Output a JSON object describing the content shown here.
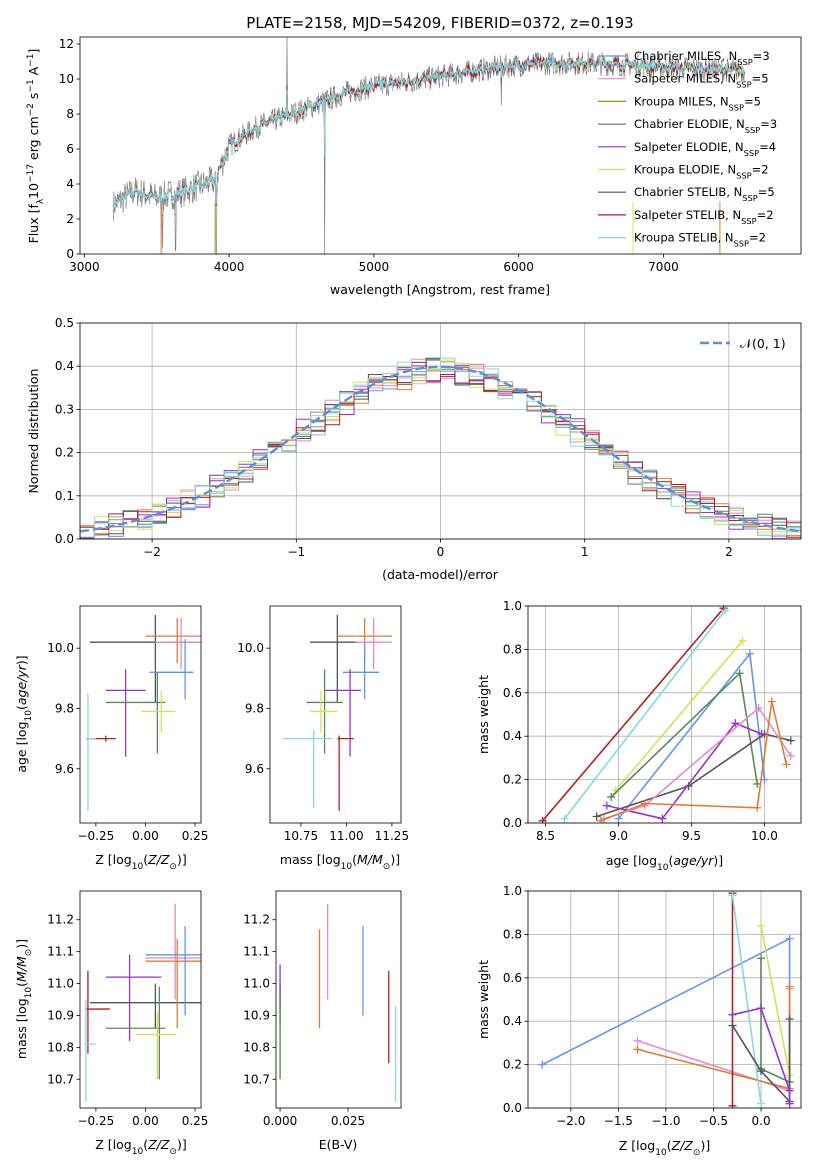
{
  "figure": {
    "title": "PLATE=2158, MJD=54209, FIBERID=0372, z=0.193"
  },
  "chart_data": [
    {
      "id": "spectrum",
      "type": "line",
      "xlabel": "wavelength [Angstrom, rest frame]",
      "ylabel": "Flux [f",
      "ylabel_parts": [
        "Flux [f",
        "λ",
        "10",
        "−17",
        " erg cm",
        "−2",
        " s",
        "−1",
        " A",
        "−1",
        "]"
      ],
      "xlim": [
        2970,
        7950
      ],
      "ylim": [
        0,
        12.4
      ],
      "xticks": [
        3000,
        4000,
        5000,
        6000,
        7000
      ],
      "yticks": [
        0,
        2,
        4,
        6,
        8,
        10,
        12
      ],
      "grid": false,
      "legend_position": "top-right",
      "data_start": 3200,
      "series": [
        {
          "name": "Chabrier MILES, N_SSP=3",
          "label_pre": "Chabrier MILES, N",
          "sub": "SSP",
          "label_post": "=3",
          "color": "#6495ed"
        },
        {
          "name": "Salpeter MILES, N_SSP=5",
          "label_pre": "Salpeter MILES, N",
          "sub": "SSP",
          "label_post": "=5",
          "color": "#e58bc7"
        },
        {
          "name": "Kroupa MILES, N_SSP=5",
          "label_pre": "Kroupa MILES, N",
          "sub": "SSP",
          "label_post": "=5",
          "color": "#b8860b"
        },
        {
          "name": "Chabrier ELODIE, N_SSP=3",
          "label_pre": "Chabrier ELODIE, N",
          "sub": "SSP",
          "label_post": "=3",
          "color": "#5a8a5a"
        },
        {
          "name": "Salpeter ELODIE, N_SSP=4",
          "label_pre": "Salpeter ELODIE, N",
          "sub": "SSP",
          "label_post": "=4",
          "color": "#9932cc"
        },
        {
          "name": "Kroupa ELODIE, N_SSP=2",
          "label_pre": "Kroupa ELODIE, N",
          "sub": "SSP",
          "label_post": "=2",
          "color": "#d4e157"
        },
        {
          "name": "Chabrier STELIB, N_SSP=5",
          "label_pre": "Chabrier STELIB, N",
          "sub": "SSP",
          "label_post": "=5",
          "color": "#555555"
        },
        {
          "name": "Salpeter STELIB, N_SSP=2",
          "label_pre": "Salpeter STELIB, N",
          "sub": "SSP",
          "label_post": "=2",
          "color": "#b22222"
        },
        {
          "name": "Kroupa STELIB, N_SSP=2",
          "label_pre": "Kroupa STELIB, N",
          "sub": "SSP",
          "label_post": "=2",
          "color": "#87d8e0"
        }
      ],
      "data_color": "#808080",
      "continuum_x": [
        3200,
        3350,
        3500,
        3700,
        3900,
        4000,
        4200,
        4500,
        4800,
        5000,
        5200,
        5500,
        5800,
        6000,
        6200,
        6500,
        6800,
        7000,
        7200,
        7500
      ],
      "continuum_y": [
        2.8,
        3.6,
        3.2,
        3.6,
        4.2,
        6.2,
        7.3,
        8.2,
        9.2,
        9.6,
        9.8,
        10.2,
        10.6,
        10.8,
        10.9,
        10.9,
        10.8,
        10.7,
        10.6,
        10.5
      ]
    },
    {
      "id": "residuals",
      "type": "histogram",
      "xlabel": "(data-model)/error",
      "ylabel": "Normed distribution",
      "xlim": [
        -2.5,
        2.5
      ],
      "ylim": [
        0,
        0.5
      ],
      "xticks": [
        -2,
        -1,
        0,
        1,
        2
      ],
      "yticks": [
        0.0,
        0.1,
        0.2,
        0.3,
        0.4,
        0.5
      ],
      "grid": true,
      "legend_position": "top-right",
      "reference": {
        "name": "𝒩(0, 1)",
        "color": "#5b8fd6"
      }
    },
    {
      "id": "age-vs-Z",
      "type": "errorbar",
      "xlabel": "Z [log",
      "ylabel": "age [log",
      "xlim": [
        -0.33,
        0.28
      ],
      "ylim": [
        9.42,
        10.14
      ],
      "xticks": [
        -0.25,
        0.0,
        0.25
      ],
      "yticks": [
        9.6,
        9.8,
        10.0
      ],
      "points": [
        {
          "x": 0.05,
          "y": 10.02,
          "xlo": -0.28,
          "xhi": 0.35,
          "ylo": 9.82,
          "yhi": 10.11,
          "color": "#555555"
        },
        {
          "x": 0.16,
          "y": 10.04,
          "xlo": 0.0,
          "xhi": 0.35,
          "ylo": 9.95,
          "yhi": 10.1,
          "color": "#e07b39"
        },
        {
          "x": 0.18,
          "y": 10.02,
          "xlo": 0.05,
          "xhi": 0.35,
          "ylo": 9.93,
          "yhi": 10.1,
          "color": "#e58bc7"
        },
        {
          "x": 0.2,
          "y": 9.92,
          "xlo": 0.02,
          "xhi": 0.24,
          "ylo": 9.83,
          "yhi": 10.03,
          "color": "#6495ed"
        },
        {
          "x": -0.1,
          "y": 9.86,
          "xlo": -0.2,
          "xhi": 0.0,
          "ylo": 9.64,
          "yhi": 9.93,
          "color": "#9932cc"
        },
        {
          "x": 0.06,
          "y": 9.82,
          "xlo": -0.2,
          "xhi": 0.1,
          "ylo": 9.65,
          "yhi": 9.92,
          "color": "#5a8a5a"
        },
        {
          "x": 0.08,
          "y": 9.79,
          "xlo": -0.02,
          "xhi": 0.15,
          "ylo": 9.72,
          "yhi": 9.86,
          "color": "#d4e157"
        },
        {
          "x": -0.2,
          "y": 9.7,
          "xlo": -0.3,
          "xhi": -0.15,
          "ylo": 9.69,
          "yhi": 9.71,
          "color": "#b22222"
        },
        {
          "x": -0.29,
          "y": 9.7,
          "xlo": -0.3,
          "xhi": -0.25,
          "ylo": 9.46,
          "yhi": 9.85,
          "color": "#87d8e0"
        }
      ]
    },
    {
      "id": "age-vs-mass",
      "type": "errorbar",
      "xlabel": "mass [log",
      "xlim": [
        10.58,
        11.3
      ],
      "ylim": [
        9.42,
        10.14
      ],
      "xticks": [
        10.75,
        11.0,
        11.25
      ],
      "yticks": [
        9.6,
        9.8,
        10.0
      ],
      "points": [
        {
          "x": 10.95,
          "y": 10.02,
          "xlo": 10.8,
          "xhi": 11.05,
          "ylo": 9.82,
          "yhi": 10.11,
          "color": "#555555"
        },
        {
          "x": 11.1,
          "y": 10.04,
          "xlo": 10.95,
          "xhi": 11.25,
          "ylo": 9.96,
          "yhi": 10.1,
          "color": "#e07b39"
        },
        {
          "x": 11.15,
          "y": 10.02,
          "xlo": 11.05,
          "xhi": 11.25,
          "ylo": 9.93,
          "yhi": 10.1,
          "color": "#e58bc7"
        },
        {
          "x": 11.1,
          "y": 9.92,
          "xlo": 10.98,
          "xhi": 11.18,
          "ylo": 9.83,
          "yhi": 10.02,
          "color": "#6495ed"
        },
        {
          "x": 11.02,
          "y": 9.86,
          "xlo": 10.88,
          "xhi": 11.08,
          "ylo": 9.64,
          "yhi": 9.93,
          "color": "#9932cc"
        },
        {
          "x": 10.88,
          "y": 9.82,
          "xlo": 10.78,
          "xhi": 10.98,
          "ylo": 9.65,
          "yhi": 9.93,
          "color": "#5a8a5a"
        },
        {
          "x": 10.86,
          "y": 9.79,
          "xlo": 10.8,
          "xhi": 10.95,
          "ylo": 9.72,
          "yhi": 9.86,
          "color": "#d4e157"
        },
        {
          "x": 10.96,
          "y": 9.7,
          "xlo": 10.95,
          "xhi": 11.04,
          "ylo": 9.46,
          "yhi": 9.71,
          "color": "#b22222"
        },
        {
          "x": 10.82,
          "y": 9.7,
          "xlo": 10.65,
          "xhi": 10.92,
          "ylo": 9.47,
          "yhi": 9.73,
          "color": "#87d8e0"
        }
      ]
    },
    {
      "id": "weight-vs-age",
      "type": "line",
      "xlabel": "age",
      "ylabel": "mass weight",
      "xlim": [
        8.38,
        10.25
      ],
      "ylim": [
        0,
        1.0
      ],
      "xticks": [
        8.5,
        9.0,
        9.5,
        10.0
      ],
      "yticks": [
        0.0,
        0.2,
        0.4,
        0.6,
        0.8,
        1.0
      ],
      "grid": true,
      "series": [
        {
          "color": "#b22222",
          "x": [
            8.48,
            9.72
          ],
          "y": [
            0.01,
            0.99
          ]
        },
        {
          "color": "#87d8e0",
          "x": [
            8.63,
            9.73
          ],
          "y": [
            0.02,
            0.98
          ]
        },
        {
          "color": "#d4e157",
          "x": [
            8.98,
            9.85
          ],
          "y": [
            0.15,
            0.84
          ]
        },
        {
          "color": "#6495ed",
          "x": [
            9.0,
            9.9,
            10.0
          ],
          "y": [
            0.02,
            0.78,
            0.2
          ]
        },
        {
          "color": "#5a8a5a",
          "x": [
            8.95,
            9.83,
            9.95
          ],
          "y": [
            0.12,
            0.69,
            0.18
          ]
        },
        {
          "color": "#555555",
          "x": [
            8.85,
            9.48,
            10.0,
            10.18
          ],
          "y": [
            0.03,
            0.17,
            0.41,
            0.38
          ]
        },
        {
          "color": "#9932cc",
          "x": [
            8.92,
            9.3,
            9.8,
            9.98
          ],
          "y": [
            0.08,
            0.02,
            0.46,
            0.41
          ]
        },
        {
          "color": "#e58bc7",
          "x": [
            8.9,
            9.18,
            9.96,
            10.18
          ],
          "y": [
            0.02,
            0.08,
            0.53,
            0.31
          ]
        },
        {
          "color": "#e07b39",
          "x": [
            8.88,
            9.18,
            9.95,
            10.05,
            10.15
          ],
          "y": [
            0.01,
            0.09,
            0.07,
            0.56,
            0.27
          ]
        }
      ]
    },
    {
      "id": "mass-vs-Z",
      "type": "errorbar",
      "xlabel": "Z [log",
      "ylabel": "mass [log",
      "xlim": [
        -0.33,
        0.28
      ],
      "ylim": [
        10.61,
        11.29
      ],
      "xticks": [
        -0.25,
        0.0,
        0.25
      ],
      "yticks": [
        10.7,
        10.8,
        10.9,
        11.0,
        11.1,
        11.2
      ],
      "points": [
        {
          "x": 0.05,
          "y": 10.94,
          "xlo": -0.28,
          "xhi": 0.35,
          "ylo": 10.86,
          "yhi": 11.0,
          "color": "#555555"
        },
        {
          "x": 0.16,
          "y": 11.07,
          "xlo": 0.0,
          "xhi": 0.35,
          "ylo": 10.86,
          "yhi": 11.14,
          "color": "#e07b39"
        },
        {
          "x": 0.15,
          "y": 11.08,
          "xlo": 0.0,
          "xhi": 0.33,
          "ylo": 10.95,
          "yhi": 11.25,
          "color": "#e58bc7"
        },
        {
          "x": 0.2,
          "y": 11.09,
          "xlo": 0.0,
          "xhi": 0.33,
          "ylo": 10.9,
          "yhi": 11.18,
          "color": "#6495ed"
        },
        {
          "x": -0.08,
          "y": 11.02,
          "xlo": -0.2,
          "xhi": 0.08,
          "ylo": 10.82,
          "yhi": 11.09,
          "color": "#9932cc"
        },
        {
          "x": 0.07,
          "y": 10.86,
          "xlo": -0.2,
          "xhi": 0.1,
          "ylo": 10.7,
          "yhi": 10.99,
          "color": "#5a8a5a"
        },
        {
          "x": 0.06,
          "y": 10.84,
          "xlo": -0.05,
          "xhi": 0.15,
          "ylo": 10.7,
          "yhi": 10.91,
          "color": "#d4e157"
        },
        {
          "x": -0.29,
          "y": 10.92,
          "xlo": -0.3,
          "xhi": -0.18,
          "ylo": 10.78,
          "yhi": 11.04,
          "color": "#b22222"
        },
        {
          "x": -0.3,
          "y": 10.81,
          "xlo": -0.31,
          "xhi": -0.25,
          "ylo": 10.63,
          "yhi": 10.95,
          "color": "#87d8e0"
        }
      ]
    },
    {
      "id": "mass-vs-EBV",
      "type": "errorbar",
      "xlabel": "E(B-V)",
      "xlim": [
        -0.0015,
        0.0445
      ],
      "ylim": [
        10.61,
        11.29
      ],
      "xticks": [
        0.0,
        0.025
      ],
      "xticklabels": [
        "0.000",
        "0.025"
      ],
      "yticks": [
        10.7,
        10.8,
        10.9,
        11.0,
        11.1,
        11.2
      ],
      "points": [
        {
          "x": 0.0,
          "y": 10.94,
          "ylo": 10.86,
          "yhi": 11.0,
          "color": "#555555"
        },
        {
          "x": 0.0,
          "y": 10.82,
          "ylo": 10.7,
          "yhi": 10.97,
          "color": "#d4e157"
        },
        {
          "x": 0.0,
          "y": 11.0,
          "ylo": 10.92,
          "yhi": 11.06,
          "color": "#9932cc"
        },
        {
          "x": 0.0,
          "y": 10.86,
          "ylo": 10.7,
          "yhi": 10.99,
          "color": "#5a8a5a"
        },
        {
          "x": 0.0145,
          "y": 11.02,
          "ylo": 10.86,
          "yhi": 11.17,
          "color": "#e07b39"
        },
        {
          "x": 0.0175,
          "y": 11.1,
          "ylo": 10.95,
          "yhi": 11.25,
          "color": "#e58bc7"
        },
        {
          "x": 0.0305,
          "y": 11.04,
          "ylo": 10.9,
          "yhi": 11.18,
          "color": "#6495ed"
        },
        {
          "x": 0.04,
          "y": 10.9,
          "ylo": 10.75,
          "yhi": 11.04,
          "color": "#b22222"
        },
        {
          "x": 0.0425,
          "y": 10.78,
          "ylo": 10.63,
          "yhi": 10.93,
          "color": "#87d8e0"
        }
      ]
    },
    {
      "id": "weight-vs-Z",
      "type": "line",
      "xlabel": "Z [log",
      "ylabel": "mass weight",
      "xlim": [
        -2.45,
        0.42
      ],
      "ylim": [
        0,
        1.0
      ],
      "xticks": [
        -2.0,
        -1.5,
        -1.0,
        -0.5,
        0.0
      ],
      "xticklabels": [
        "−2.0",
        "−1.5",
        "−1.0",
        "−0.5",
        "0.0"
      ],
      "yticks": [
        0.0,
        0.2,
        0.4,
        0.6,
        0.8,
        1.0
      ],
      "grid": true,
      "series": [
        {
          "color": "#6495ed",
          "x": [
            -2.3,
            0.3,
            0.3
          ],
          "y": [
            0.2,
            0.78,
            0.02
          ]
        },
        {
          "color": "#e58bc7",
          "x": [
            -1.3,
            0.3,
            0.3
          ],
          "y": [
            0.31,
            0.08,
            0.55
          ]
        },
        {
          "color": "#e07b39",
          "x": [
            -1.3,
            0.3,
            0.3
          ],
          "y": [
            0.27,
            0.09,
            0.56
          ]
        },
        {
          "color": "#b22222",
          "x": [
            -0.3,
            -0.3
          ],
          "y": [
            0.01,
            0.99
          ]
        },
        {
          "color": "#87d8e0",
          "x": [
            -0.3,
            0.0
          ],
          "y": [
            0.98,
            0.02
          ]
        },
        {
          "color": "#d4e157",
          "x": [
            0.0,
            0.3
          ],
          "y": [
            0.84,
            0.15
          ]
        },
        {
          "color": "#5a8a5a",
          "x": [
            0.0,
            0.0,
            0.3
          ],
          "y": [
            0.69,
            0.18,
            0.12
          ]
        },
        {
          "color": "#555555",
          "x": [
            -0.3,
            0.0,
            0.3,
            0.3
          ],
          "y": [
            0.38,
            0.17,
            0.03,
            0.41
          ]
        },
        {
          "color": "#9932cc",
          "x": [
            -0.3,
            0.0,
            0.3,
            0.3
          ],
          "y": [
            0.43,
            0.46,
            0.08,
            0.02
          ]
        }
      ]
    }
  ]
}
